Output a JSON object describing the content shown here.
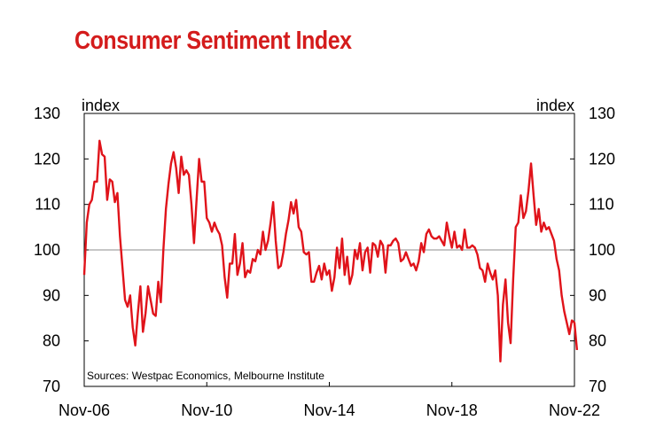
{
  "chart_data": {
    "type": "line",
    "title": "Consumer Sentiment Index",
    "left_axis_label": "index",
    "right_axis_label": "index",
    "source": "Sources: Westpac Economics, Melbourne Institute",
    "ylim": [
      70,
      130
    ],
    "yticks": [
      70,
      80,
      90,
      100,
      110,
      120,
      130
    ],
    "xlim": [
      0,
      192
    ],
    "xtick_positions": [
      0,
      48,
      96,
      144,
      192
    ],
    "xtick_labels": [
      "Nov-06",
      "Nov-10",
      "Nov-14",
      "Nov-18",
      "Nov-22"
    ],
    "reference_line": 100,
    "grid": false,
    "line_color": "#e0131a",
    "series": [
      {
        "values": [
          94.5,
          106,
          110,
          111,
          115,
          115,
          124,
          121,
          120.5,
          111,
          115.5,
          115,
          110.5,
          112.5,
          103,
          96,
          89,
          87.5,
          90,
          83,
          79,
          86,
          92,
          82,
          86,
          92,
          89,
          86,
          85.5,
          93,
          88.5,
          100,
          109,
          114.5,
          119,
          121.5,
          118,
          112.5,
          120.5,
          116.5,
          117.5,
          116.5,
          110,
          101.5,
          111,
          120,
          115,
          115,
          107,
          106,
          104,
          106,
          104.5,
          103.5,
          101,
          94,
          89.5,
          97,
          97,
          103.5,
          94.5,
          97,
          101.5,
          94,
          95.5,
          95,
          98,
          97.5,
          100,
          99,
          104,
          100,
          102,
          106,
          110.5,
          102,
          96,
          96.5,
          99.5,
          103.5,
          106.5,
          110.5,
          108,
          111,
          105,
          104,
          99.5,
          99,
          99.5,
          93,
          93,
          95,
          96.5,
          93.5,
          97,
          94.5,
          95.5,
          91,
          94,
          100.5,
          96,
          102.5,
          94.5,
          98.5,
          92.5,
          94.5,
          100,
          98,
          101.5,
          95.5,
          99.5,
          100.5,
          95,
          101.5,
          101,
          98.5,
          102,
          101,
          95,
          101,
          101,
          102,
          102.5,
          101.5,
          97.5,
          98,
          99.5,
          98,
          96.5,
          97,
          95.5,
          97.5,
          101.5,
          99.5,
          103.5,
          104.5,
          103,
          102.5,
          102.5,
          103,
          102,
          101,
          106,
          103,
          100.5,
          104,
          100.5,
          101,
          100,
          104.5,
          100.5,
          100.5,
          101,
          100.5,
          99,
          96,
          95.5,
          93,
          97,
          95,
          93.5,
          95.5,
          90,
          75.5,
          88,
          93.5,
          84,
          79.5,
          93.5,
          105,
          106,
          112,
          107,
          108.5,
          113,
          119,
          112,
          105.5,
          109,
          104,
          106,
          104.5,
          105,
          103.5,
          102,
          98,
          95.5,
          90,
          86.5,
          84,
          81.5,
          84.5,
          84,
          78
        ]
      }
    ]
  }
}
